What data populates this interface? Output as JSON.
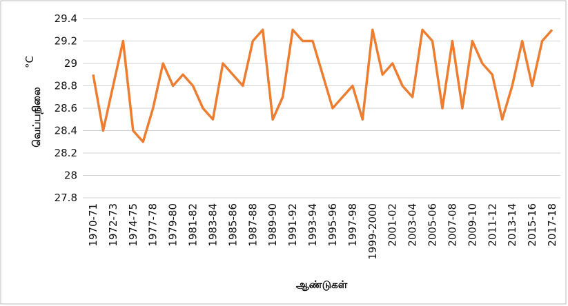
{
  "chart_data": {
    "type": "line",
    "y_label": "வெப்பநிலை",
    "y_unit": "°C",
    "x_label": "ஆண்டுகள்",
    "categories": [
      "1970-71",
      null,
      "1972-73",
      null,
      "1974-75",
      null,
      "1977-78",
      null,
      "1979-80",
      null,
      "1981-82",
      null,
      "1983-84",
      null,
      "1985-86",
      null,
      "1987-88",
      null,
      "1989-90",
      null,
      "1991-92",
      null,
      "1993-94",
      null,
      "1995-96",
      null,
      "1997-98",
      null,
      "1999-2000",
      null,
      "2001-02",
      null,
      "2003-04",
      null,
      "2005-06",
      null,
      "2007-08",
      null,
      "2009-10",
      null,
      "2011-12",
      null,
      "2013-14",
      null,
      "2015-16",
      null,
      "2017-18"
    ],
    "series": [
      {
        "color": "#ed7d31",
        "values": [
          28.9,
          28.4,
          28.8,
          29.2,
          28.4,
          28.3,
          28.6,
          29.0,
          28.8,
          28.9,
          28.8,
          28.6,
          28.5,
          29.0,
          28.9,
          28.8,
          29.2,
          29.3,
          28.5,
          28.7,
          29.3,
          29.2,
          29.2,
          28.9,
          28.6,
          28.7,
          28.8,
          28.5,
          29.3,
          28.9,
          29.0,
          28.8,
          28.7,
          29.3,
          29.2,
          28.6,
          29.2,
          28.6,
          29.2,
          29.0,
          28.9,
          28.5,
          28.8,
          29.2,
          28.8,
          29.2,
          29.3
        ]
      }
    ],
    "ylim": [
      27.8,
      29.4
    ],
    "yticks": [
      27.8,
      28,
      28.2,
      28.4,
      28.6,
      28.8,
      29,
      29.2,
      29.4
    ],
    "grid": true
  }
}
